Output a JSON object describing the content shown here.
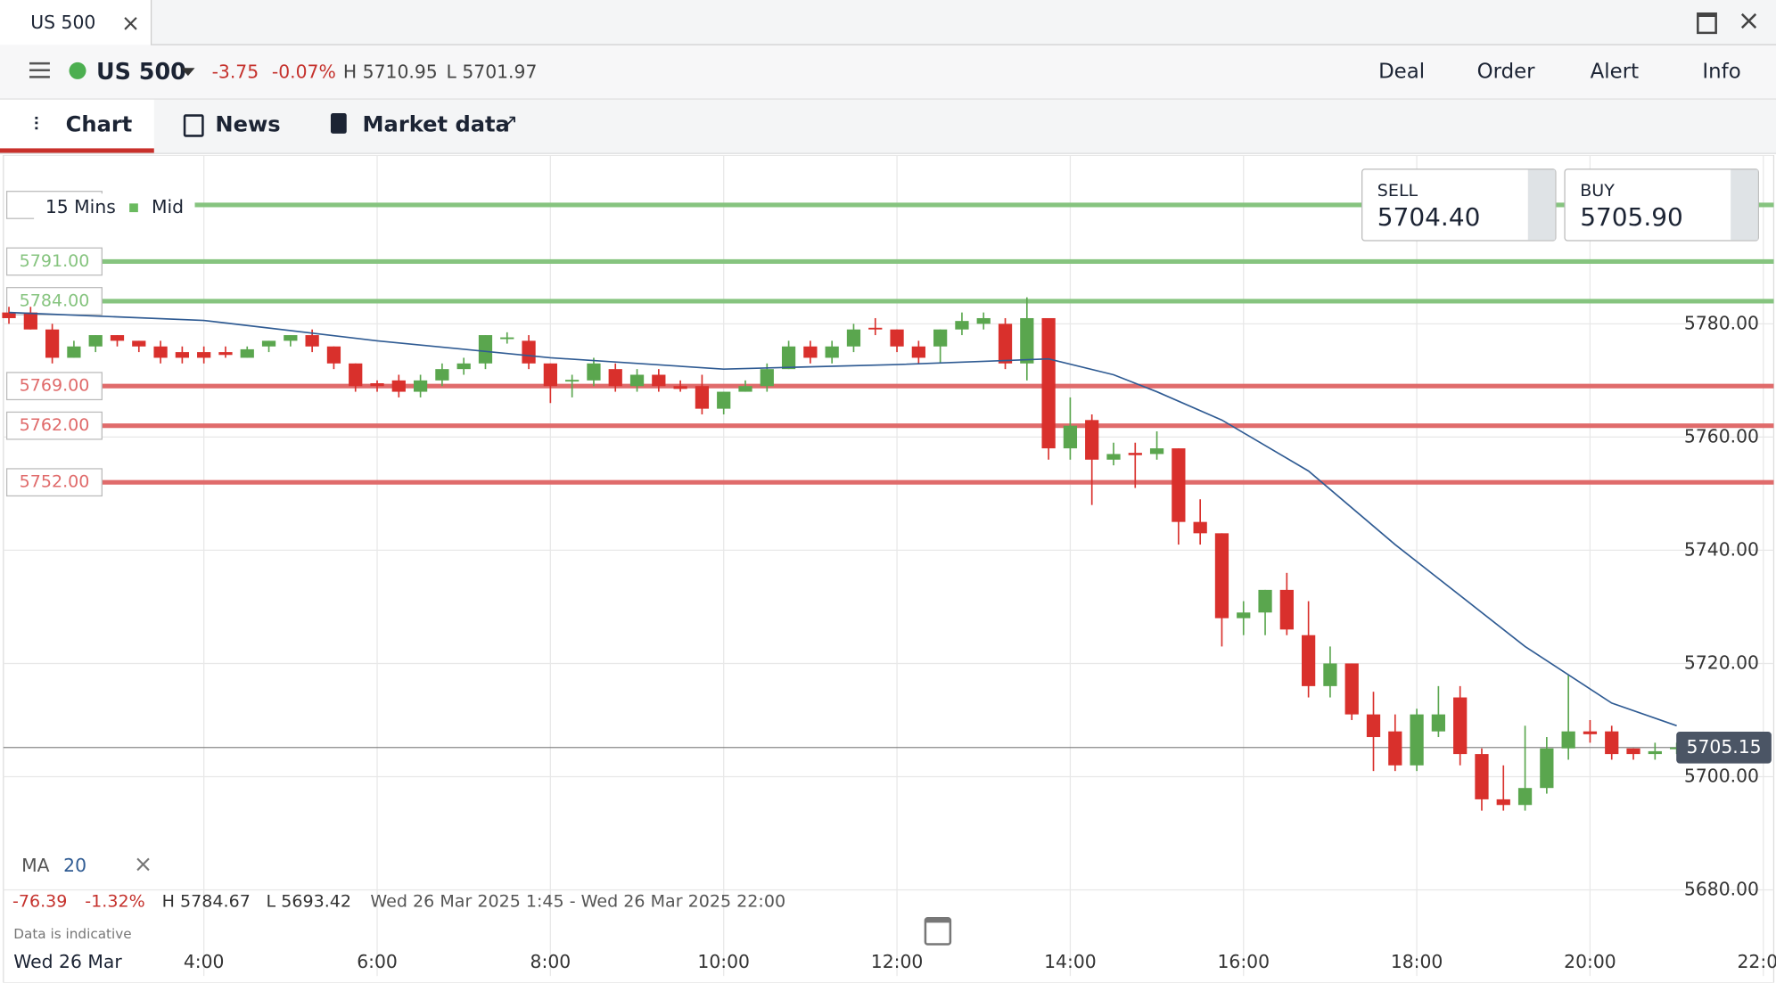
{
  "window": {
    "tab": "US 500"
  },
  "header": {
    "instrument": "US 500",
    "change": "-3.75",
    "change_pct": "-0.07%",
    "high": "H 5710.95",
    "low": "L 5701.97",
    "actions": [
      "Deal",
      "Order",
      "Alert",
      "Info"
    ]
  },
  "tabs": [
    "Chart",
    "News",
    "Market data"
  ],
  "toolbar": {
    "interval": "15 Mins",
    "price_type": "Mid"
  },
  "quote": {
    "sell_label": "SELL",
    "sell": "5704.40",
    "buy_label": "BUY",
    "buy": "5705.90"
  },
  "stats": {
    "change": "-76.39",
    "change_pct": "-1.32%",
    "high": "H 5784.67",
    "low": "L 5693.42",
    "range": "Wed 26 Mar 2025 1:45 - Wed 26 Mar 2025 22:00",
    "note": "Data is indicative",
    "date": "Wed 26 Mar"
  },
  "chart_data": {
    "type": "candlestick",
    "x": [
      1.75,
      2,
      2.25,
      2.5,
      2.75,
      3,
      3.25,
      3.5,
      3.75,
      4,
      4.25,
      4.5,
      4.75,
      5,
      5.25,
      5.5,
      5.75,
      6,
      6.25,
      6.5,
      6.75,
      7,
      7.25,
      7.5,
      7.75,
      8,
      8.25,
      8.5,
      8.75,
      9,
      9.25,
      9.5,
      9.75,
      10,
      10.25,
      10.5,
      10.75,
      11,
      11.25,
      11.5,
      11.75,
      12,
      12.25,
      12.5,
      12.75,
      13,
      13.25,
      13.5,
      13.75,
      14,
      14.25,
      14.5,
      14.75,
      15,
      15.25,
      15.5,
      15.75,
      16,
      16.25,
      16.5,
      16.75,
      17,
      17.25,
      17.5,
      17.75,
      18,
      18.25,
      18.5,
      18.75,
      19,
      19.25,
      19.5,
      19.75,
      20,
      20.25,
      20.5,
      20.75,
      21
    ],
    "open": [
      5782,
      5782,
      5779,
      5774,
      5776,
      5778,
      5777,
      5776,
      5775,
      5775,
      5775,
      5774,
      5776,
      5777,
      5778,
      5776,
      5773,
      5769.5,
      5770,
      5768,
      5770,
      5772,
      5773,
      5777.5,
      5777,
      5773,
      5770,
      5770,
      5772,
      5769,
      5771,
      5769,
      5769,
      5765,
      5768,
      5769,
      5772,
      5776,
      5774,
      5776,
      5779.3,
      5779,
      5776,
      5776,
      5779,
      5780,
      5780,
      5773,
      5781,
      5758,
      5763,
      5756,
      5757.2,
      5757,
      5758,
      5745,
      5743,
      5728,
      5729,
      5733,
      5725,
      5716,
      5720,
      5711,
      5708,
      5702,
      5708,
      5714,
      5704,
      5696,
      5695,
      5698,
      5705,
      5708,
      5708,
      5705,
      5704,
      5705
    ],
    "high": [
      5783,
      5783,
      5780,
      5777,
      5778,
      5778,
      5777,
      5777,
      5776,
      5776,
      5776,
      5776,
      5777,
      5778,
      5779,
      5776,
      5773,
      5770,
      5771,
      5771,
      5773,
      5774,
      5778,
      5778.5,
      5778,
      5773,
      5771,
      5774,
      5773,
      5772,
      5772,
      5770,
      5771,
      5768,
      5770,
      5773,
      5777,
      5777,
      5777,
      5780,
      5781,
      5779,
      5777,
      5779,
      5782,
      5782,
      5781,
      5784.67,
      5781,
      5767,
      5764,
      5759,
      5759,
      5761,
      5758,
      5749,
      5743,
      5731,
      5733,
      5736,
      5731,
      5723,
      5720,
      5715,
      5711,
      5712,
      5716,
      5716,
      5705,
      5702,
      5709,
      5707,
      5718,
      5710,
      5709,
      5705,
      5706,
      5706
    ],
    "low": [
      5780,
      5779,
      5773,
      5774,
      5775,
      5776,
      5775,
      5773,
      5773,
      5773,
      5774,
      5774,
      5775,
      5776,
      5775,
      5772,
      5768,
      5768,
      5767,
      5767,
      5769,
      5771,
      5772,
      5776.5,
      5772,
      5766,
      5767,
      5769,
      5768,
      5768,
      5768,
      5768,
      5764,
      5764,
      5768,
      5768,
      5772,
      5773,
      5773,
      5775,
      5778,
      5775,
      5773,
      5773,
      5778,
      5779,
      5772,
      5770,
      5756,
      5756,
      5748,
      5755,
      5751,
      5756,
      5741,
      5741,
      5723,
      5725,
      5725,
      5725,
      5714,
      5714,
      5710,
      5701,
      5701,
      5701,
      5707,
      5702,
      5694,
      5694,
      5694,
      5697,
      5703,
      5706,
      5703,
      5703,
      5703,
      5704
    ],
    "close": [
      5781,
      5779,
      5774,
      5776,
      5778,
      5777,
      5776,
      5774,
      5774,
      5774,
      5774.5,
      5775.5,
      5777,
      5778,
      5776,
      5773,
      5769,
      5769,
      5768,
      5770,
      5772,
      5773,
      5778,
      5777.6,
      5773,
      5769,
      5770.1,
      5773,
      5769,
      5771,
      5769,
      5768.5,
      5765,
      5768,
      5769,
      5772,
      5776,
      5774,
      5776,
      5779,
      5779,
      5776,
      5774,
      5779,
      5780.5,
      5781,
      5773,
      5781,
      5758,
      5762,
      5756,
      5757,
      5756.8,
      5758,
      5745,
      5743,
      5728,
      5729,
      5733,
      5726,
      5716,
      5720,
      5711,
      5707,
      5702,
      5711,
      5711,
      5704,
      5696,
      5695,
      5698,
      5705,
      5708,
      5707.5,
      5704,
      5704,
      5704.5,
      5705.15
    ],
    "up_color": "#5aa64e",
    "down_color": "#d9302c",
    "ma": {
      "name": "MA",
      "period": 20,
      "color": "#2f5b93",
      "x": [
        1.75,
        4,
        6,
        8,
        10,
        12,
        13.75,
        14.5,
        15,
        15.75,
        16.75,
        17.75,
        19.25,
        20.25,
        21
      ],
      "values": [
        5782,
        5780.6,
        5777,
        5774,
        5772,
        5772.8,
        5773.8,
        5771,
        5768,
        5763,
        5754,
        5741,
        5723,
        5713,
        5709
      ]
    },
    "levels": [
      {
        "value": 5801,
        "color": "#86c47f"
      },
      {
        "value": 5791,
        "label": "5791.00",
        "color": "#86c47f"
      },
      {
        "value": 5784,
        "label": "5784.00",
        "color": "#86c47f"
      },
      {
        "value": 5769,
        "label": "5769.00",
        "color": "#e06b6b"
      },
      {
        "value": 5762,
        "label": "5762.00",
        "color": "#e06b6b"
      },
      {
        "value": 5752,
        "label": "5752.00",
        "color": "#e06b6b"
      }
    ],
    "current_price": 5705.15,
    "xlim": [
      1.686,
      22.12
    ],
    "ylim": [
      5664.8,
      5809.8
    ],
    "xticks": [
      {
        "value": 4,
        "label": "4:00"
      },
      {
        "value": 6,
        "label": "6:00"
      },
      {
        "value": 8,
        "label": "8:00"
      },
      {
        "value": 10,
        "label": "10:00"
      },
      {
        "value": 12,
        "label": "12:00"
      },
      {
        "value": 14,
        "label": "14:00"
      },
      {
        "value": 16,
        "label": "16:00"
      },
      {
        "value": 18,
        "label": "18:00"
      },
      {
        "value": 20,
        "label": "20:00"
      },
      {
        "value": 22,
        "label": "22:00"
      }
    ],
    "yticks": [
      {
        "value": 5680,
        "label": "5680.00"
      },
      {
        "value": 5700,
        "label": "5700.00"
      },
      {
        "value": 5720,
        "label": "5720.00"
      },
      {
        "value": 5740,
        "label": "5740.00"
      },
      {
        "value": 5760,
        "label": "5760.00"
      },
      {
        "value": 5780,
        "label": "5780.00"
      }
    ],
    "grid": true
  }
}
